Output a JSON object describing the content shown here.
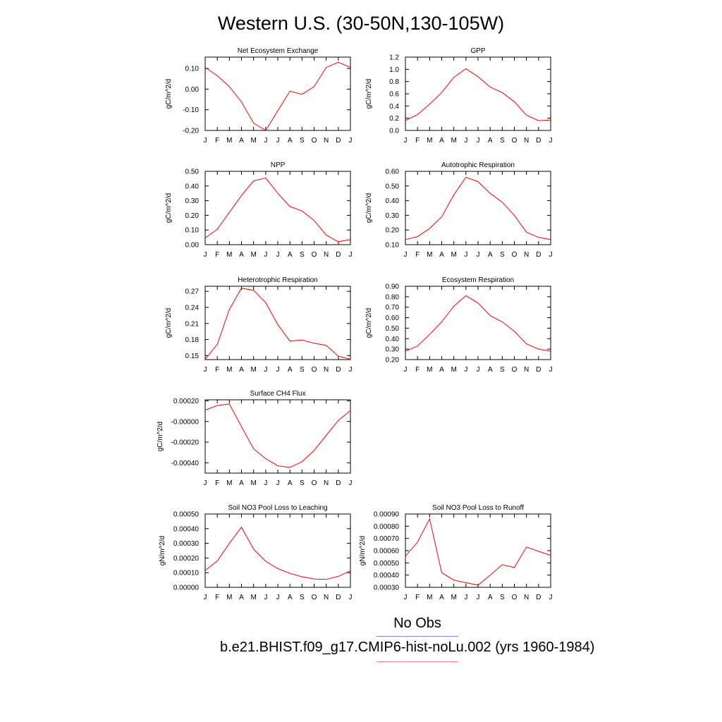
{
  "page_title": "Western U.S. (30-50N,130-105W)",
  "legend": {
    "obs_label": "No Obs",
    "obs_color": "#8080ff",
    "model_label": "b.e21.BHIST.f09_g17.CMIP6-hist-noLu.002 (yrs 1960-1984)",
    "model_color": "#ff8080"
  },
  "chart_data": [
    {
      "type": "line",
      "title": "Net Ecosystem Exchange",
      "ylabel": "gC/m^2/d",
      "categories": [
        "J",
        "F",
        "M",
        "A",
        "M",
        "J",
        "J",
        "A",
        "S",
        "O",
        "N",
        "D",
        "J"
      ],
      "yticks": [
        "0.10",
        "0.00",
        "-0.10",
        "-0.20"
      ],
      "ylim": [
        -0.2,
        0.155
      ],
      "values": [
        0.105,
        0.065,
        0.012,
        -0.062,
        -0.165,
        -0.2,
        -0.105,
        -0.01,
        -0.025,
        0.012,
        0.105,
        0.13,
        0.105
      ],
      "line_color": "#ff0000"
    },
    {
      "type": "line",
      "title": "GPP",
      "ylabel": "gC/m^2/d",
      "categories": [
        "J",
        "F",
        "M",
        "A",
        "M",
        "J",
        "J",
        "A",
        "S",
        "O",
        "N",
        "D",
        "J"
      ],
      "yticks": [
        "1.2",
        "1.0",
        "0.8",
        "0.6",
        "0.4",
        "0.2",
        "0.0"
      ],
      "ylim": [
        0,
        1.2
      ],
      "values": [
        0.16,
        0.26,
        0.43,
        0.62,
        0.87,
        1.01,
        0.88,
        0.71,
        0.62,
        0.47,
        0.25,
        0.16,
        0.17
      ],
      "line_color": "#ff0000"
    },
    {
      "type": "line",
      "title": "NPP",
      "ylabel": "gC/m^2/d",
      "categories": [
        "J",
        "F",
        "M",
        "A",
        "M",
        "J",
        "J",
        "A",
        "S",
        "O",
        "N",
        "D",
        "J"
      ],
      "yticks": [
        "0.50",
        "0.40",
        "0.30",
        "0.20",
        "0.10",
        "0.00"
      ],
      "ylim": [
        0,
        0.5
      ],
      "values": [
        0.045,
        0.105,
        0.22,
        0.335,
        0.435,
        0.455,
        0.35,
        0.26,
        0.23,
        0.165,
        0.065,
        0.02,
        0.035
      ],
      "line_color": "#ff0000"
    },
    {
      "type": "line",
      "title": "Autotrophic Respiration",
      "ylabel": "gC/m^2/d",
      "categories": [
        "J",
        "F",
        "M",
        "A",
        "M",
        "J",
        "J",
        "A",
        "S",
        "O",
        "N",
        "D",
        "J"
      ],
      "yticks": [
        "0.60",
        "0.50",
        "0.40",
        "0.30",
        "0.20",
        "0.10"
      ],
      "ylim": [
        0.1,
        0.6
      ],
      "values": [
        0.135,
        0.155,
        0.21,
        0.29,
        0.44,
        0.56,
        0.53,
        0.45,
        0.39,
        0.3,
        0.185,
        0.15,
        0.135
      ],
      "line_color": "#ff0000"
    },
    {
      "type": "line",
      "title": "Heterotrophic Respiration",
      "ylabel": "gC/m^2/d",
      "categories": [
        "J",
        "F",
        "M",
        "A",
        "M",
        "J",
        "J",
        "A",
        "S",
        "O",
        "N",
        "D",
        "J"
      ],
      "yticks": [
        "0.27",
        "0.24",
        "0.21",
        "0.18",
        "0.15"
      ],
      "ylim": [
        0.1425,
        0.2795
      ],
      "values": [
        0.143,
        0.171,
        0.236,
        0.276,
        0.272,
        0.249,
        0.208,
        0.177,
        0.179,
        0.173,
        0.169,
        0.149,
        0.143
      ],
      "line_color": "#ff0000"
    },
    {
      "type": "line",
      "title": "Ecosystem Respiration",
      "ylabel": "gC/m^2/d",
      "categories": [
        "J",
        "F",
        "M",
        "A",
        "M",
        "J",
        "J",
        "A",
        "S",
        "O",
        "N",
        "D",
        "J"
      ],
      "yticks": [
        "0.90",
        "0.80",
        "0.70",
        "0.60",
        "0.50",
        "0.40",
        "0.30",
        "0.20"
      ],
      "ylim": [
        0.2,
        0.9
      ],
      "values": [
        0.28,
        0.33,
        0.44,
        0.56,
        0.71,
        0.81,
        0.74,
        0.62,
        0.56,
        0.47,
        0.35,
        0.3,
        0.28
      ],
      "line_color": "#ff0000"
    },
    {
      "type": "line",
      "title": "Surface CH4 Flux",
      "ylabel": "gC/m^2/d",
      "categories": [
        "J",
        "F",
        "M",
        "A",
        "M",
        "J",
        "J",
        "A",
        "S",
        "O",
        "N",
        "D",
        "J"
      ],
      "yticks": [
        "0.00020",
        "-0.00000",
        "-0.00020",
        "-0.00040"
      ],
      "ylim": [
        -0.0005,
        0.00021
      ],
      "values": [
        0.00011,
        0.000155,
        0.00017,
        -5e-05,
        -0.000265,
        -0.00036,
        -0.00043,
        -0.000445,
        -0.00039,
        -0.00028,
        -0.000135,
        1e-05,
        0.000105
      ],
      "line_color": "#ff0000"
    },
    {
      "type": "line",
      "title": "Soil NO3 Pool Loss to Leaching",
      "ylabel": "gN/m^2/d",
      "categories": [
        "J",
        "F",
        "M",
        "A",
        "M",
        "J",
        "J",
        "A",
        "S",
        "O",
        "N",
        "D",
        "J"
      ],
      "yticks": [
        "0.00050",
        "0.00040",
        "0.00030",
        "0.00020",
        "0.00010",
        "0.00000"
      ],
      "ylim": [
        0,
        0.0005
      ],
      "values": [
        0.000115,
        0.00018,
        0.0003,
        0.00041,
        0.00026,
        0.000178,
        0.000128,
        9.5e-05,
        7.2e-05,
        5.7e-05,
        5.4e-05,
        7.5e-05,
        0.000112
      ],
      "line_color": "#ff0000"
    },
    {
      "type": "line",
      "title": "Soil NO3 Pool Loss to Runoff",
      "ylabel": "gN/m^2/d",
      "categories": [
        "J",
        "F",
        "M",
        "A",
        "M",
        "J",
        "J",
        "A",
        "S",
        "O",
        "N",
        "D",
        "J"
      ],
      "yticks": [
        "0.00090",
        "0.00080",
        "0.00070",
        "0.00060",
        "0.00050",
        "0.00040",
        "0.00030"
      ],
      "ylim": [
        0.0003,
        0.0009
      ],
      "values": [
        0.000555,
        0.00067,
        0.00086,
        0.00042,
        0.000358,
        0.000338,
        0.000318,
        0.0004,
        0.000485,
        0.000462,
        0.00063,
        0.000595,
        0.000562
      ],
      "line_color": "#ff0000"
    }
  ]
}
